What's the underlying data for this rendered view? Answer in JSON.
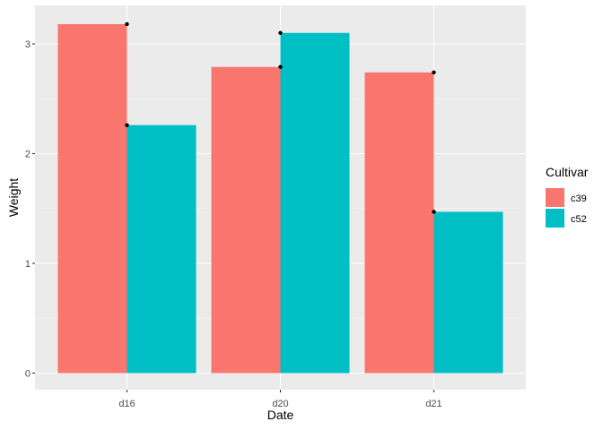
{
  "chart_data": {
    "type": "bar",
    "position": "dodge",
    "categories": [
      "d16",
      "d20",
      "d21"
    ],
    "series": [
      {
        "name": "c39",
        "values": [
          3.18,
          2.79,
          2.74
        ]
      },
      {
        "name": "c52",
        "values": [
          2.26,
          3.1,
          1.47
        ]
      }
    ],
    "points": [
      {
        "series": "c39",
        "category": "d16",
        "y": 3.18
      },
      {
        "series": "c52",
        "category": "d16",
        "y": 2.26
      },
      {
        "series": "c39",
        "category": "d20",
        "y": 2.79
      },
      {
        "series": "c52",
        "category": "d20",
        "y": 3.1
      },
      {
        "series": "c39",
        "category": "d21",
        "y": 2.74
      },
      {
        "series": "c52",
        "category": "d21",
        "y": 1.47
      }
    ],
    "xlabel": "Date",
    "ylabel": "Weight",
    "ylim": [
      -0.1,
      3.35
    ],
    "yticks": [
      "0",
      "1",
      "2",
      "3"
    ],
    "legend": {
      "title": "Cultivar",
      "placement": "right"
    },
    "grid": true,
    "colors": {
      "c39": "#F8766D",
      "c52": "#00BFC4",
      "panel": "#EBEBEB",
      "grid_major": "#FFFFFF",
      "grid_minor": "#F5F5F5",
      "point": "#000000"
    }
  }
}
